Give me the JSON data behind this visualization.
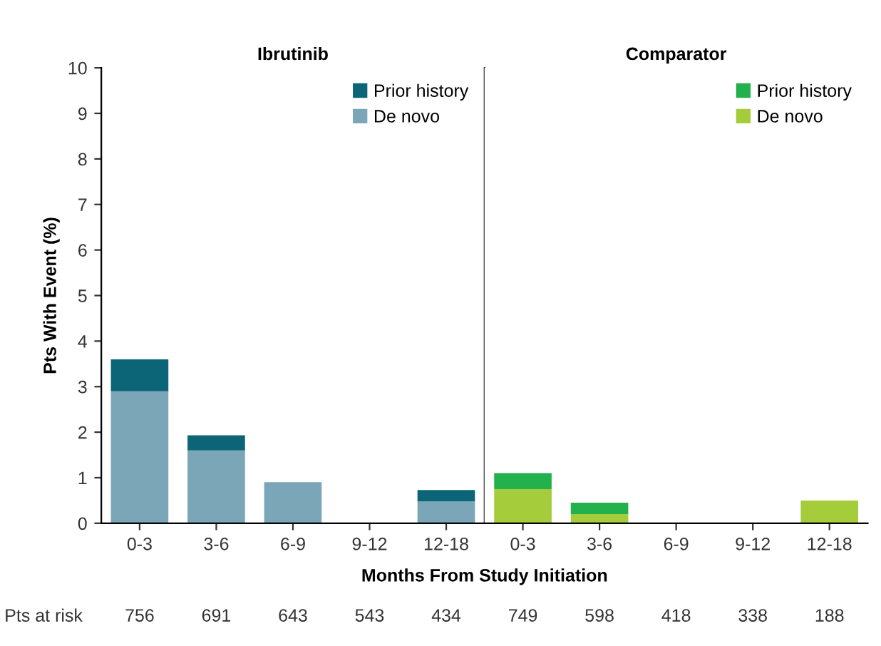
{
  "chart_data": [
    {
      "type": "bar",
      "title": "Ibrutinib",
      "ylabel": "Pts With Event (%)",
      "xlabel": "Months From Study Initiation",
      "categories": [
        "0-3",
        "3-6",
        "6-9",
        "9-12",
        "12-18"
      ],
      "stacked": true,
      "ylim": [
        0,
        10
      ],
      "yticks": [
        0,
        1,
        2,
        3,
        4,
        5,
        6,
        7,
        8,
        9,
        10
      ],
      "legend": "top right",
      "grid": false,
      "series": [
        {
          "name": "De novo",
          "color": "#7aa6b8",
          "values": [
            2.9,
            1.6,
            0.9,
            0,
            0.48
          ]
        },
        {
          "name": "Prior history",
          "color": "#0b6577",
          "values": [
            0.7,
            0.33,
            0,
            0,
            0.25
          ]
        }
      ],
      "annotations": [
        "Pts at risk",
        "756",
        "691",
        "643",
        "543",
        "434"
      ]
    },
    {
      "type": "bar",
      "title": "Comparator",
      "categories": [
        "0-3",
        "3-6",
        "6-9",
        "9-12",
        "12-18"
      ],
      "stacked": true,
      "ylim": [
        0,
        10
      ],
      "yticks": [
        0,
        1,
        2,
        3,
        4,
        5,
        6,
        7,
        8,
        9,
        10
      ],
      "tick_labels": "x",
      "legend": "top right",
      "grid": false,
      "series": [
        {
          "name": "De novo",
          "color": "#a5cc3a",
          "values": [
            0.75,
            0.2,
            0,
            0,
            0.5
          ]
        },
        {
          "name": "Prior history",
          "color": "#22b14c",
          "values": [
            0.35,
            0.25,
            0,
            0,
            0
          ]
        }
      ],
      "annotations": [
        "749",
        "598",
        "418",
        "338",
        "188"
      ]
    }
  ]
}
